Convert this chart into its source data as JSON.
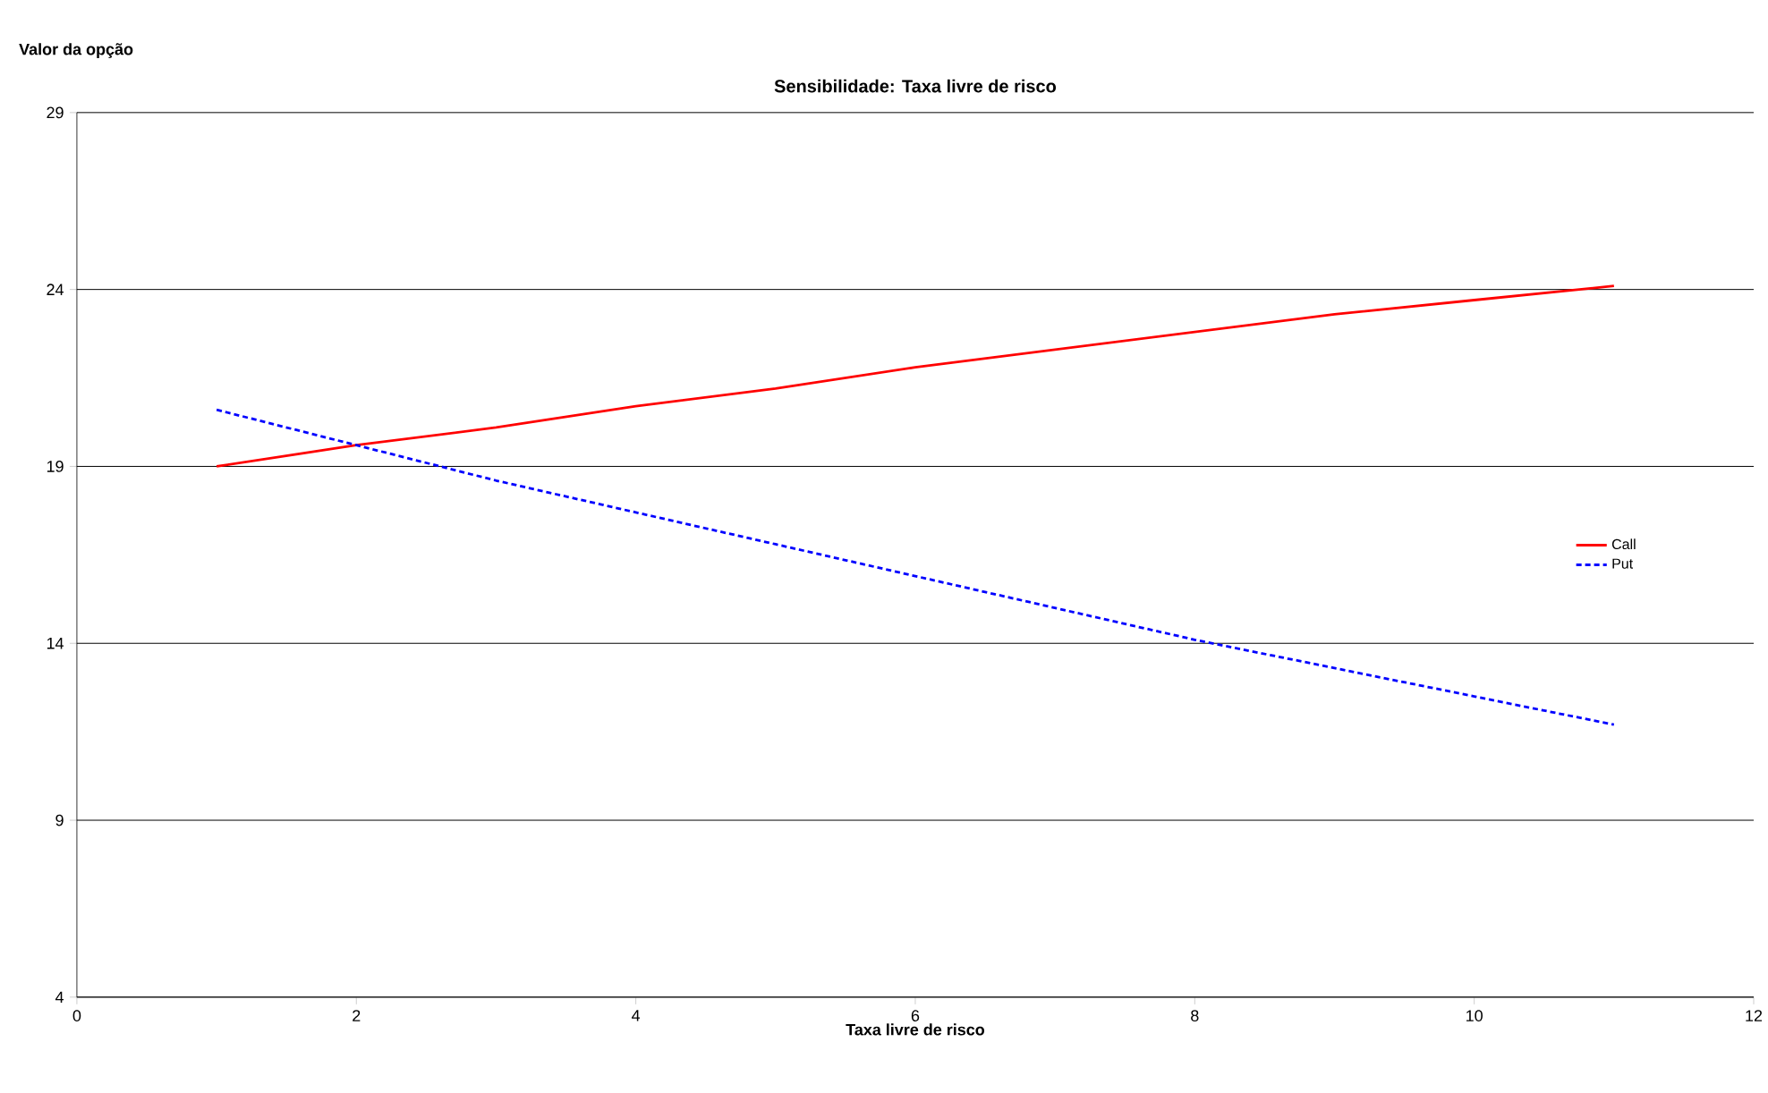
{
  "chart_data": {
    "type": "line",
    "title": "Sensibilidade: Taxa livre de risco",
    "xlabel": "Taxa livre de risco",
    "ylabel": "Valor da opção",
    "x": [
      1,
      2,
      3,
      4,
      5,
      6,
      7,
      8,
      9,
      10,
      11
    ],
    "series": [
      {
        "name": "Call",
        "color": "#ff0000",
        "line_style": "solid",
        "values": [
          19.0,
          19.6,
          20.1,
          20.7,
          21.2,
          21.8,
          22.3,
          22.8,
          23.3,
          23.7,
          24.1
        ]
      },
      {
        "name": "Put",
        "color": "#0000ff",
        "line_style": "dashed",
        "values": [
          20.6,
          19.6,
          18.6,
          17.7,
          16.8,
          15.9,
          15.0,
          14.1,
          13.3,
          12.5,
          11.7
        ]
      }
    ],
    "xlim": [
      0,
      12
    ],
    "xticks": [
      0,
      2,
      4,
      6,
      8,
      10,
      12
    ],
    "ylim": [
      4,
      29
    ],
    "yticks": [
      4,
      9,
      14,
      19,
      24,
      29
    ],
    "grid": "y",
    "legend": "right",
    "marker": "none"
  }
}
